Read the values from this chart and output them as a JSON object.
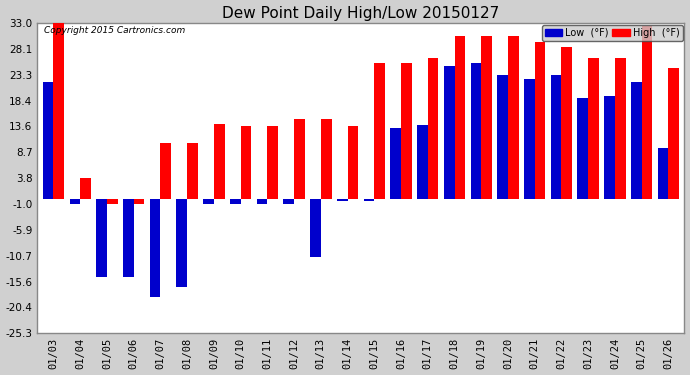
{
  "title": "Dew Point Daily High/Low 20150127",
  "copyright": "Copyright 2015 Cartronics.com",
  "dates": [
    "01/03",
    "01/04",
    "01/05",
    "01/06",
    "01/07",
    "01/08",
    "01/09",
    "01/10",
    "01/11",
    "01/12",
    "01/13",
    "01/14",
    "01/15",
    "01/16",
    "01/17",
    "01/18",
    "01/19",
    "01/20",
    "01/21",
    "01/22",
    "01/23",
    "01/24",
    "01/25",
    "01/26"
  ],
  "highs": [
    33.0,
    3.8,
    -1.0,
    -1.0,
    10.4,
    10.4,
    14.0,
    13.6,
    13.6,
    15.0,
    15.0,
    13.6,
    25.5,
    25.5,
    26.5,
    30.5,
    30.5,
    30.5,
    29.5,
    28.5,
    26.5,
    26.5,
    32.5,
    24.5
  ],
  "lows": [
    22.0,
    -1.0,
    -14.8,
    -14.8,
    -18.5,
    -16.5,
    -1.0,
    -1.0,
    -1.0,
    -1.0,
    -11.0,
    -0.5,
    -0.5,
    13.2,
    13.8,
    25.0,
    25.5,
    23.3,
    22.5,
    23.3,
    19.0,
    19.3,
    22.0,
    9.5
  ],
  "ylim": [
    -25.3,
    33.0
  ],
  "yticks": [
    33.0,
    28.1,
    23.3,
    18.4,
    13.6,
    8.7,
    3.8,
    -1.0,
    -5.9,
    -10.7,
    -15.6,
    -20.4,
    -25.3
  ],
  "high_color": "#ff0000",
  "low_color": "#0000cc",
  "bar_width": 0.4,
  "bg_color": "#ffffff",
  "plot_bg_color": "#ffffff",
  "grid_color": "#bbbbbb",
  "border_color": "#888888",
  "title_fontsize": 11,
  "tick_fontsize": 7.5,
  "figsize": [
    6.9,
    3.75
  ],
  "dpi": 100
}
